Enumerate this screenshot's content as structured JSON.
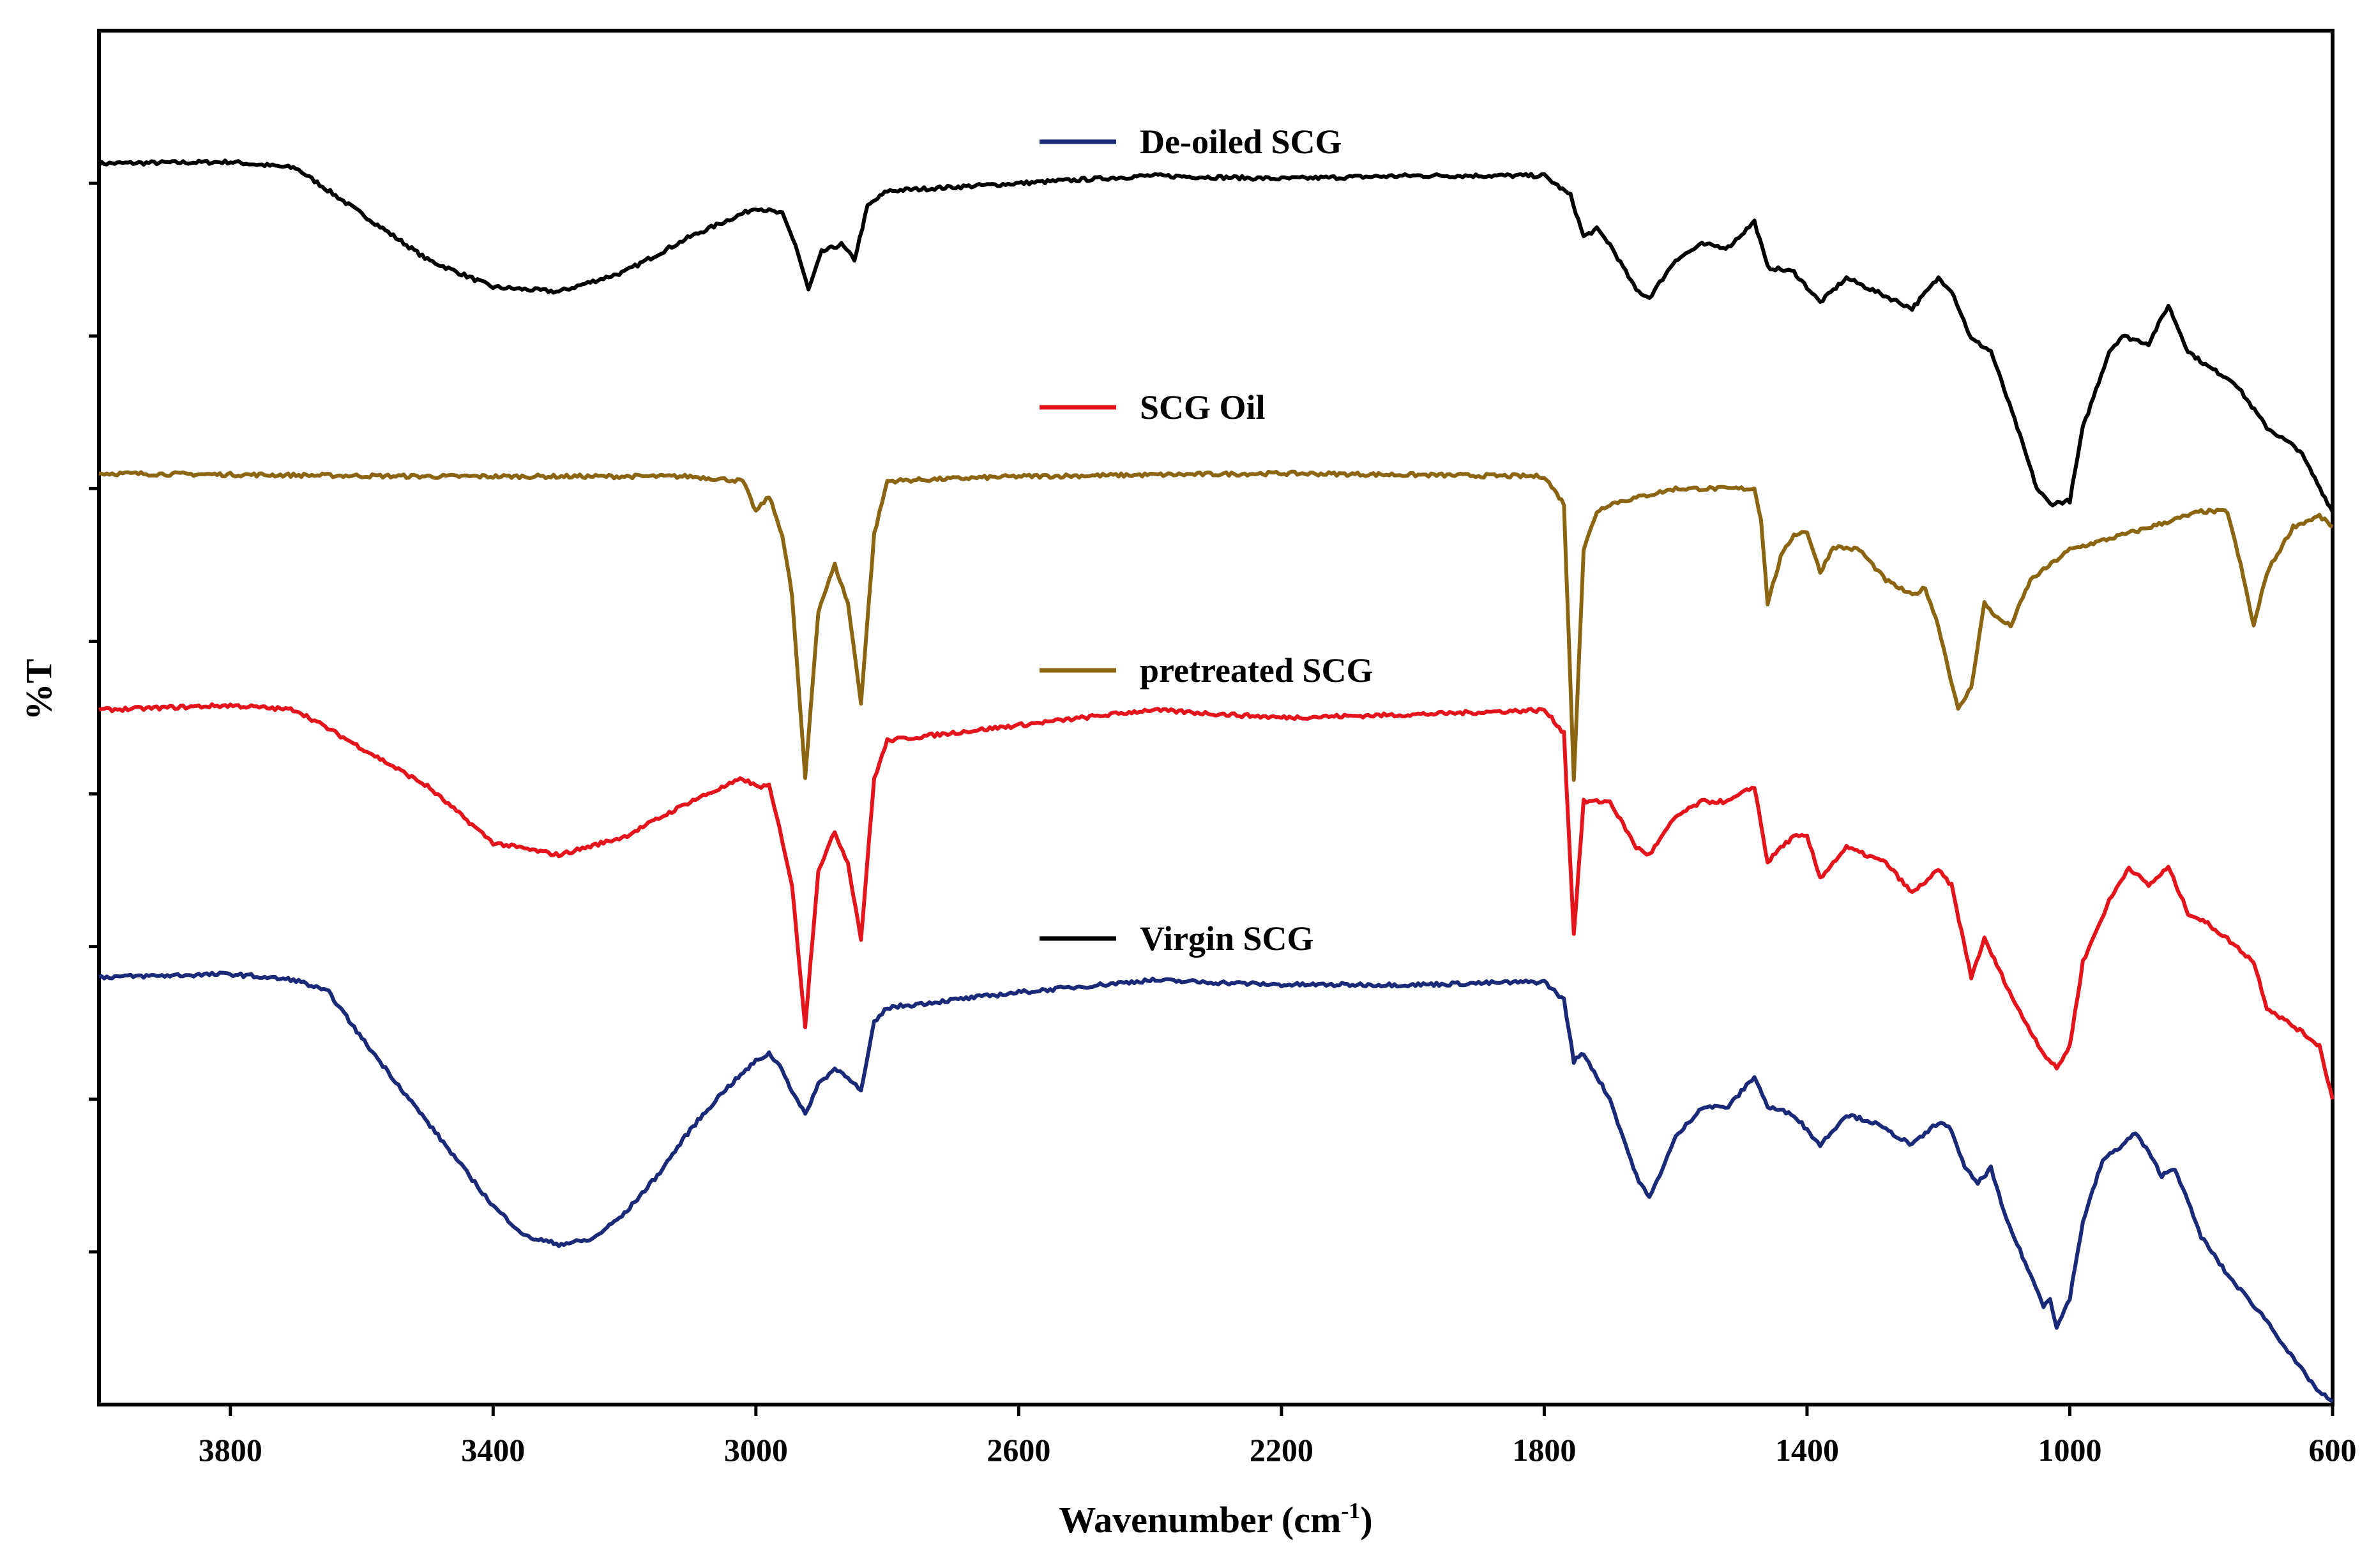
{
  "chart_data": {
    "type": "line",
    "title": "",
    "xlabel": "Wavenumber (cm",
    "xlabel_sup": "-1",
    "xlabel_close": ")",
    "ylabel": "%T",
    "xlim": [
      4000,
      600
    ],
    "ylim": [
      0,
      9
    ],
    "x_ticks": [
      3800,
      3400,
      3000,
      2600,
      2200,
      1800,
      1400,
      1000,
      600
    ],
    "y_ticks": [
      1,
      2,
      3,
      4,
      5,
      6,
      7,
      8
    ],
    "y_tick_labels_visible": false,
    "grid": false,
    "legend": [
      {
        "label": "De-oiled SCG",
        "color": "#1b2a78"
      },
      {
        "label": "SCG Oil",
        "color": "#e3141b"
      },
      {
        "label": "pretreated SCG",
        "color": "#8b6512"
      },
      {
        "label": "Virgin SCG",
        "color": "#000000"
      }
    ],
    "series": [
      {
        "name": "Virgin SCG",
        "color": "#000000",
        "points": [
          [
            4000,
            8.13
          ],
          [
            3800,
            8.14
          ],
          [
            3700,
            8.1
          ],
          [
            3600,
            7.8
          ],
          [
            3500,
            7.5
          ],
          [
            3400,
            7.32
          ],
          [
            3300,
            7.29
          ],
          [
            3200,
            7.42
          ],
          [
            3100,
            7.65
          ],
          [
            3000,
            7.84
          ],
          [
            2960,
            7.8
          ],
          [
            2940,
            7.6
          ],
          [
            2920,
            7.3
          ],
          [
            2900,
            7.55
          ],
          [
            2870,
            7.6
          ],
          [
            2850,
            7.5
          ],
          [
            2830,
            7.85
          ],
          [
            2800,
            7.95
          ],
          [
            2600,
            8.0
          ],
          [
            2400,
            8.05
          ],
          [
            2200,
            8.03
          ],
          [
            2000,
            8.05
          ],
          [
            1800,
            8.05
          ],
          [
            1760,
            7.92
          ],
          [
            1740,
            7.65
          ],
          [
            1720,
            7.7
          ],
          [
            1700,
            7.6
          ],
          [
            1660,
            7.3
          ],
          [
            1640,
            7.25
          ],
          [
            1600,
            7.5
          ],
          [
            1560,
            7.6
          ],
          [
            1520,
            7.58
          ],
          [
            1480,
            7.75
          ],
          [
            1460,
            7.45
          ],
          [
            1420,
            7.42
          ],
          [
            1380,
            7.22
          ],
          [
            1340,
            7.38
          ],
          [
            1300,
            7.3
          ],
          [
            1240,
            7.18
          ],
          [
            1200,
            7.38
          ],
          [
            1180,
            7.3
          ],
          [
            1150,
            6.98
          ],
          [
            1120,
            6.9
          ],
          [
            1080,
            6.4
          ],
          [
            1050,
            6.0
          ],
          [
            1030,
            5.9
          ],
          [
            1000,
            5.92
          ],
          [
            980,
            6.4
          ],
          [
            940,
            6.9
          ],
          [
            920,
            7.0
          ],
          [
            880,
            6.95
          ],
          [
            850,
            7.2
          ],
          [
            820,
            6.9
          ],
          [
            790,
            6.8
          ],
          [
            750,
            6.7
          ],
          [
            700,
            6.4
          ],
          [
            650,
            6.25
          ],
          [
            600,
            5.85
          ]
        ]
      },
      {
        "name": "pretreated SCG",
        "color": "#8b6512",
        "points": [
          [
            4000,
            6.1
          ],
          [
            3500,
            6.08
          ],
          [
            3100,
            6.08
          ],
          [
            3020,
            6.05
          ],
          [
            3000,
            5.85
          ],
          [
            2980,
            5.95
          ],
          [
            2960,
            5.7
          ],
          [
            2945,
            5.3
          ],
          [
            2925,
            4.1
          ],
          [
            2905,
            5.2
          ],
          [
            2880,
            5.5
          ],
          [
            2860,
            5.25
          ],
          [
            2840,
            4.6
          ],
          [
            2820,
            5.7
          ],
          [
            2800,
            6.05
          ],
          [
            2600,
            6.08
          ],
          [
            2200,
            6.1
          ],
          [
            1800,
            6.08
          ],
          [
            1770,
            5.9
          ],
          [
            1755,
            4.1
          ],
          [
            1740,
            5.6
          ],
          [
            1720,
            5.85
          ],
          [
            1700,
            5.9
          ],
          [
            1600,
            6.0
          ],
          [
            1480,
            6.0
          ],
          [
            1470,
            5.8
          ],
          [
            1460,
            5.25
          ],
          [
            1440,
            5.55
          ],
          [
            1420,
            5.7
          ],
          [
            1400,
            5.72
          ],
          [
            1380,
            5.45
          ],
          [
            1360,
            5.62
          ],
          [
            1320,
            5.6
          ],
          [
            1280,
            5.4
          ],
          [
            1240,
            5.3
          ],
          [
            1220,
            5.35
          ],
          [
            1200,
            5.1
          ],
          [
            1170,
            4.55
          ],
          [
            1150,
            4.7
          ],
          [
            1130,
            5.25
          ],
          [
            1110,
            5.15
          ],
          [
            1090,
            5.1
          ],
          [
            1060,
            5.4
          ],
          [
            1000,
            5.6
          ],
          [
            900,
            5.72
          ],
          [
            800,
            5.85
          ],
          [
            760,
            5.85
          ],
          [
            740,
            5.5
          ],
          [
            720,
            5.1
          ],
          [
            700,
            5.45
          ],
          [
            660,
            5.75
          ],
          [
            620,
            5.82
          ],
          [
            600,
            5.75
          ]
        ]
      },
      {
        "name": "SCG Oil",
        "color": "#e3141b",
        "points": [
          [
            4000,
            4.55
          ],
          [
            3800,
            4.58
          ],
          [
            3700,
            4.55
          ],
          [
            3600,
            4.3
          ],
          [
            3500,
            4.05
          ],
          [
            3400,
            3.68
          ],
          [
            3300,
            3.6
          ],
          [
            3200,
            3.72
          ],
          [
            3100,
            3.95
          ],
          [
            3020,
            4.1
          ],
          [
            3000,
            4.05
          ],
          [
            2980,
            4.05
          ],
          [
            2960,
            3.7
          ],
          [
            2945,
            3.4
          ],
          [
            2925,
            2.48
          ],
          [
            2905,
            3.5
          ],
          [
            2880,
            3.75
          ],
          [
            2860,
            3.55
          ],
          [
            2840,
            3.05
          ],
          [
            2820,
            4.1
          ],
          [
            2800,
            4.35
          ],
          [
            2600,
            4.45
          ],
          [
            2400,
            4.55
          ],
          [
            2200,
            4.5
          ],
          [
            2000,
            4.52
          ],
          [
            1800,
            4.55
          ],
          [
            1770,
            4.4
          ],
          [
            1755,
            3.08
          ],
          [
            1740,
            3.95
          ],
          [
            1720,
            3.95
          ],
          [
            1700,
            3.95
          ],
          [
            1660,
            3.65
          ],
          [
            1640,
            3.6
          ],
          [
            1600,
            3.85
          ],
          [
            1560,
            3.95
          ],
          [
            1520,
            3.95
          ],
          [
            1480,
            4.05
          ],
          [
            1470,
            3.8
          ],
          [
            1460,
            3.55
          ],
          [
            1440,
            3.65
          ],
          [
            1420,
            3.72
          ],
          [
            1400,
            3.72
          ],
          [
            1380,
            3.45
          ],
          [
            1340,
            3.65
          ],
          [
            1280,
            3.55
          ],
          [
            1240,
            3.35
          ],
          [
            1200,
            3.5
          ],
          [
            1180,
            3.4
          ],
          [
            1150,
            2.8
          ],
          [
            1130,
            3.05
          ],
          [
            1100,
            2.78
          ],
          [
            1080,
            2.6
          ],
          [
            1040,
            2.3
          ],
          [
            1020,
            2.2
          ],
          [
            1000,
            2.35
          ],
          [
            980,
            2.9
          ],
          [
            940,
            3.3
          ],
          [
            910,
            3.52
          ],
          [
            880,
            3.4
          ],
          [
            850,
            3.52
          ],
          [
            820,
            3.22
          ],
          [
            790,
            3.15
          ],
          [
            760,
            3.05
          ],
          [
            720,
            2.9
          ],
          [
            700,
            2.6
          ],
          [
            650,
            2.45
          ],
          [
            620,
            2.35
          ],
          [
            600,
            2.0
          ]
        ]
      },
      {
        "name": "De-oiled SCG",
        "color": "#1b2a78",
        "points": [
          [
            4000,
            2.8
          ],
          [
            3800,
            2.82
          ],
          [
            3700,
            2.78
          ],
          [
            3650,
            2.7
          ],
          [
            3600,
            2.4
          ],
          [
            3500,
            1.85
          ],
          [
            3400,
            1.3
          ],
          [
            3350,
            1.1
          ],
          [
            3300,
            1.05
          ],
          [
            3250,
            1.08
          ],
          [
            3200,
            1.25
          ],
          [
            3150,
            1.5
          ],
          [
            3100,
            1.8
          ],
          [
            3050,
            2.05
          ],
          [
            3000,
            2.25
          ],
          [
            2980,
            2.3
          ],
          [
            2960,
            2.2
          ],
          [
            2945,
            2.05
          ],
          [
            2925,
            1.9
          ],
          [
            2905,
            2.1
          ],
          [
            2880,
            2.2
          ],
          [
            2860,
            2.15
          ],
          [
            2840,
            2.05
          ],
          [
            2820,
            2.5
          ],
          [
            2800,
            2.6
          ],
          [
            2600,
            2.7
          ],
          [
            2400,
            2.78
          ],
          [
            2200,
            2.75
          ],
          [
            2000,
            2.75
          ],
          [
            1800,
            2.77
          ],
          [
            1770,
            2.65
          ],
          [
            1755,
            2.25
          ],
          [
            1740,
            2.3
          ],
          [
            1700,
            2.0
          ],
          [
            1660,
            1.5
          ],
          [
            1640,
            1.35
          ],
          [
            1600,
            1.75
          ],
          [
            1560,
            1.95
          ],
          [
            1520,
            1.95
          ],
          [
            1480,
            2.15
          ],
          [
            1460,
            1.95
          ],
          [
            1420,
            1.9
          ],
          [
            1380,
            1.7
          ],
          [
            1340,
            1.9
          ],
          [
            1300,
            1.85
          ],
          [
            1240,
            1.7
          ],
          [
            1200,
            1.85
          ],
          [
            1180,
            1.8
          ],
          [
            1160,
            1.55
          ],
          [
            1140,
            1.45
          ],
          [
            1120,
            1.55
          ],
          [
            1100,
            1.25
          ],
          [
            1060,
            0.85
          ],
          [
            1040,
            0.65
          ],
          [
            1030,
            0.7
          ],
          [
            1020,
            0.5
          ],
          [
            1000,
            0.7
          ],
          [
            980,
            1.2
          ],
          [
            950,
            1.6
          ],
          [
            920,
            1.7
          ],
          [
            900,
            1.78
          ],
          [
            880,
            1.65
          ],
          [
            860,
            1.5
          ],
          [
            840,
            1.55
          ],
          [
            800,
            1.1
          ],
          [
            760,
            0.85
          ],
          [
            700,
            0.55
          ],
          [
            660,
            0.3
          ],
          [
            620,
            0.08
          ],
          [
            600,
            0.02
          ]
        ]
      }
    ]
  }
}
